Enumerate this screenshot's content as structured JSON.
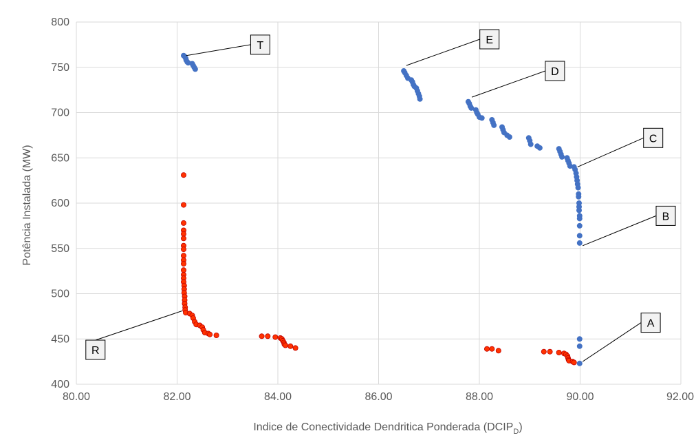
{
  "chart_data": {
    "type": "scatter",
    "xlabel": "Indice de Conectividade Dendritica Ponderada (DCIP",
    "xlabel_sub": "D",
    "xlabel_suffix": ")",
    "ylabel": "Potência Instalada (MW)",
    "xlim": [
      80,
      92
    ],
    "ylim": [
      400,
      800
    ],
    "x_ticks": [
      "80.00",
      "82.00",
      "84.00",
      "86.00",
      "88.00",
      "90.00",
      "92.00"
    ],
    "y_ticks": [
      "400",
      "450",
      "500",
      "550",
      "600",
      "650",
      "700",
      "750",
      "800"
    ],
    "grid": true,
    "legend": "none",
    "colors": {
      "blue": "#4472C4",
      "red": "#FF3300",
      "red_edge": "#C00000",
      "grid": "#D9D9D9",
      "callout_line": "#000000"
    },
    "series": [
      {
        "color": "blue",
        "points": [
          [
            82.13,
            763
          ],
          [
            82.15,
            762
          ],
          [
            82.17,
            760
          ],
          [
            82.18,
            758
          ],
          [
            82.2,
            756
          ],
          [
            82.22,
            755
          ],
          [
            82.3,
            754
          ],
          [
            82.32,
            752
          ],
          [
            82.34,
            750
          ],
          [
            82.36,
            748
          ],
          [
            86.5,
            746
          ],
          [
            86.52,
            744
          ],
          [
            86.55,
            741
          ],
          [
            86.58,
            738
          ],
          [
            86.65,
            736
          ],
          [
            86.67,
            734
          ],
          [
            86.69,
            731
          ],
          [
            86.71,
            729
          ],
          [
            86.75,
            727
          ],
          [
            86.77,
            724
          ],
          [
            86.79,
            721
          ],
          [
            86.81,
            718
          ],
          [
            86.82,
            715
          ],
          [
            87.78,
            712
          ],
          [
            87.8,
            710
          ],
          [
            87.82,
            707
          ],
          [
            87.84,
            705
          ],
          [
            87.93,
            703
          ],
          [
            87.95,
            700
          ],
          [
            87.97,
            698
          ],
          [
            88.0,
            695
          ],
          [
            88.05,
            694
          ],
          [
            88.25,
            692
          ],
          [
            88.27,
            689
          ],
          [
            88.29,
            686
          ],
          [
            88.45,
            684
          ],
          [
            88.47,
            681
          ],
          [
            88.49,
            678
          ],
          [
            88.55,
            675
          ],
          [
            88.6,
            673
          ],
          [
            88.98,
            672
          ],
          [
            89.0,
            669
          ],
          [
            89.02,
            665
          ],
          [
            89.15,
            663
          ],
          [
            89.2,
            661
          ],
          [
            89.58,
            660
          ],
          [
            89.6,
            657
          ],
          [
            89.62,
            654
          ],
          [
            89.64,
            651
          ],
          [
            89.74,
            650
          ],
          [
            89.76,
            647
          ],
          [
            89.78,
            644
          ],
          [
            89.8,
            641
          ],
          [
            89.88,
            640
          ],
          [
            89.9,
            637
          ],
          [
            89.92,
            633
          ],
          [
            89.93,
            629
          ],
          [
            89.94,
            625
          ],
          [
            89.95,
            621
          ],
          [
            89.96,
            617
          ],
          [
            89.97,
            610
          ],
          [
            89.97,
            607
          ],
          [
            89.98,
            600
          ],
          [
            89.98,
            596
          ],
          [
            89.98,
            592
          ],
          [
            89.99,
            586
          ],
          [
            89.99,
            583
          ],
          [
            89.99,
            575
          ],
          [
            89.99,
            564
          ],
          [
            89.99,
            556
          ],
          [
            89.99,
            450
          ],
          [
            89.99,
            442
          ],
          [
            89.99,
            423
          ]
        ]
      },
      {
        "color": "red",
        "points": [
          [
            82.13,
            631
          ],
          [
            82.13,
            598
          ],
          [
            82.13,
            578
          ],
          [
            82.13,
            570
          ],
          [
            82.13,
            566
          ],
          [
            82.13,
            561
          ],
          [
            82.13,
            553
          ],
          [
            82.13,
            549
          ],
          [
            82.13,
            542
          ],
          [
            82.13,
            537
          ],
          [
            82.13,
            533
          ],
          [
            82.13,
            526
          ],
          [
            82.13,
            521
          ],
          [
            82.13,
            517
          ],
          [
            82.13,
            513
          ],
          [
            82.14,
            509
          ],
          [
            82.14,
            505
          ],
          [
            82.14,
            501
          ],
          [
            82.15,
            497
          ],
          [
            82.15,
            493
          ],
          [
            82.15,
            489
          ],
          [
            82.16,
            485
          ],
          [
            82.16,
            482
          ],
          [
            82.17,
            479
          ],
          [
            82.25,
            478
          ],
          [
            82.3,
            476
          ],
          [
            82.32,
            473
          ],
          [
            82.35,
            469
          ],
          [
            82.38,
            466
          ],
          [
            82.45,
            465
          ],
          [
            82.5,
            463
          ],
          [
            82.52,
            460
          ],
          [
            82.55,
            457
          ],
          [
            82.62,
            456
          ],
          [
            82.65,
            455
          ],
          [
            82.78,
            454
          ],
          [
            83.68,
            453
          ],
          [
            83.8,
            453
          ],
          [
            83.95,
            452
          ],
          [
            84.05,
            451
          ],
          [
            84.08,
            450
          ],
          [
            84.1,
            448
          ],
          [
            84.12,
            446
          ],
          [
            84.13,
            444
          ],
          [
            84.15,
            443
          ],
          [
            84.25,
            442
          ],
          [
            84.35,
            440
          ],
          [
            88.15,
            439
          ],
          [
            88.25,
            439
          ],
          [
            88.38,
            437
          ],
          [
            89.28,
            436
          ],
          [
            89.4,
            436
          ],
          [
            89.58,
            435
          ],
          [
            89.68,
            434
          ],
          [
            89.72,
            433
          ],
          [
            89.75,
            431
          ],
          [
            89.76,
            429
          ],
          [
            89.77,
            427
          ],
          [
            89.78,
            426
          ],
          [
            89.85,
            425
          ],
          [
            89.88,
            424
          ]
        ]
      }
    ],
    "annotations": [
      {
        "label": "T",
        "line_from": [
          82.18,
          763
        ],
        "box_at": [
          83.65,
          775
        ]
      },
      {
        "label": "E",
        "line_from": [
          86.55,
          752
        ],
        "box_at": [
          88.2,
          781
        ]
      },
      {
        "label": "D",
        "line_from": [
          87.85,
          717
        ],
        "box_at": [
          89.5,
          746
        ]
      },
      {
        "label": "C",
        "line_from": [
          89.95,
          640
        ],
        "box_at": [
          91.45,
          672
        ]
      },
      {
        "label": "B",
        "line_from": [
          90.05,
          553
        ],
        "box_at": [
          91.7,
          586
        ]
      },
      {
        "label": "R",
        "line_from": [
          82.1,
          481
        ],
        "box_at": [
          80.38,
          438
        ]
      },
      {
        "label": "A",
        "line_from": [
          90.05,
          425
        ],
        "box_at": [
          91.4,
          468
        ]
      }
    ]
  }
}
